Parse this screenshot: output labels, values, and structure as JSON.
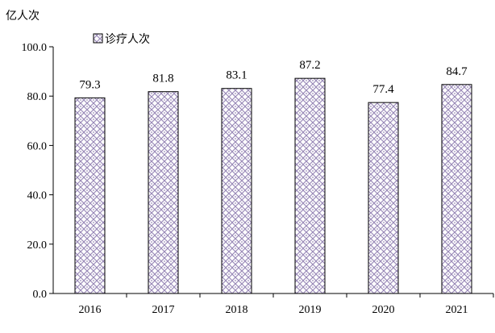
{
  "chart_data": {
    "type": "bar",
    "ylabel": "亿人次",
    "categories": [
      "2016",
      "2017",
      "2018",
      "2019",
      "2020",
      "2021"
    ],
    "series": [
      {
        "name": "诊疗人次",
        "values": [
          79.3,
          81.8,
          83.1,
          87.2,
          77.4,
          84.7
        ]
      }
    ],
    "data_labels": [
      "79.3",
      "81.8",
      "83.1",
      "87.2",
      "77.4",
      "84.7"
    ],
    "yticks": [
      "0.0",
      "20.0",
      "40.0",
      "60.0",
      "80.0",
      "100.0"
    ],
    "ylim": [
      0,
      100
    ],
    "legend": "top-left",
    "grid": false,
    "bar_pattern_color": "#9a8ab8",
    "bar_outline_color": "#000000"
  }
}
